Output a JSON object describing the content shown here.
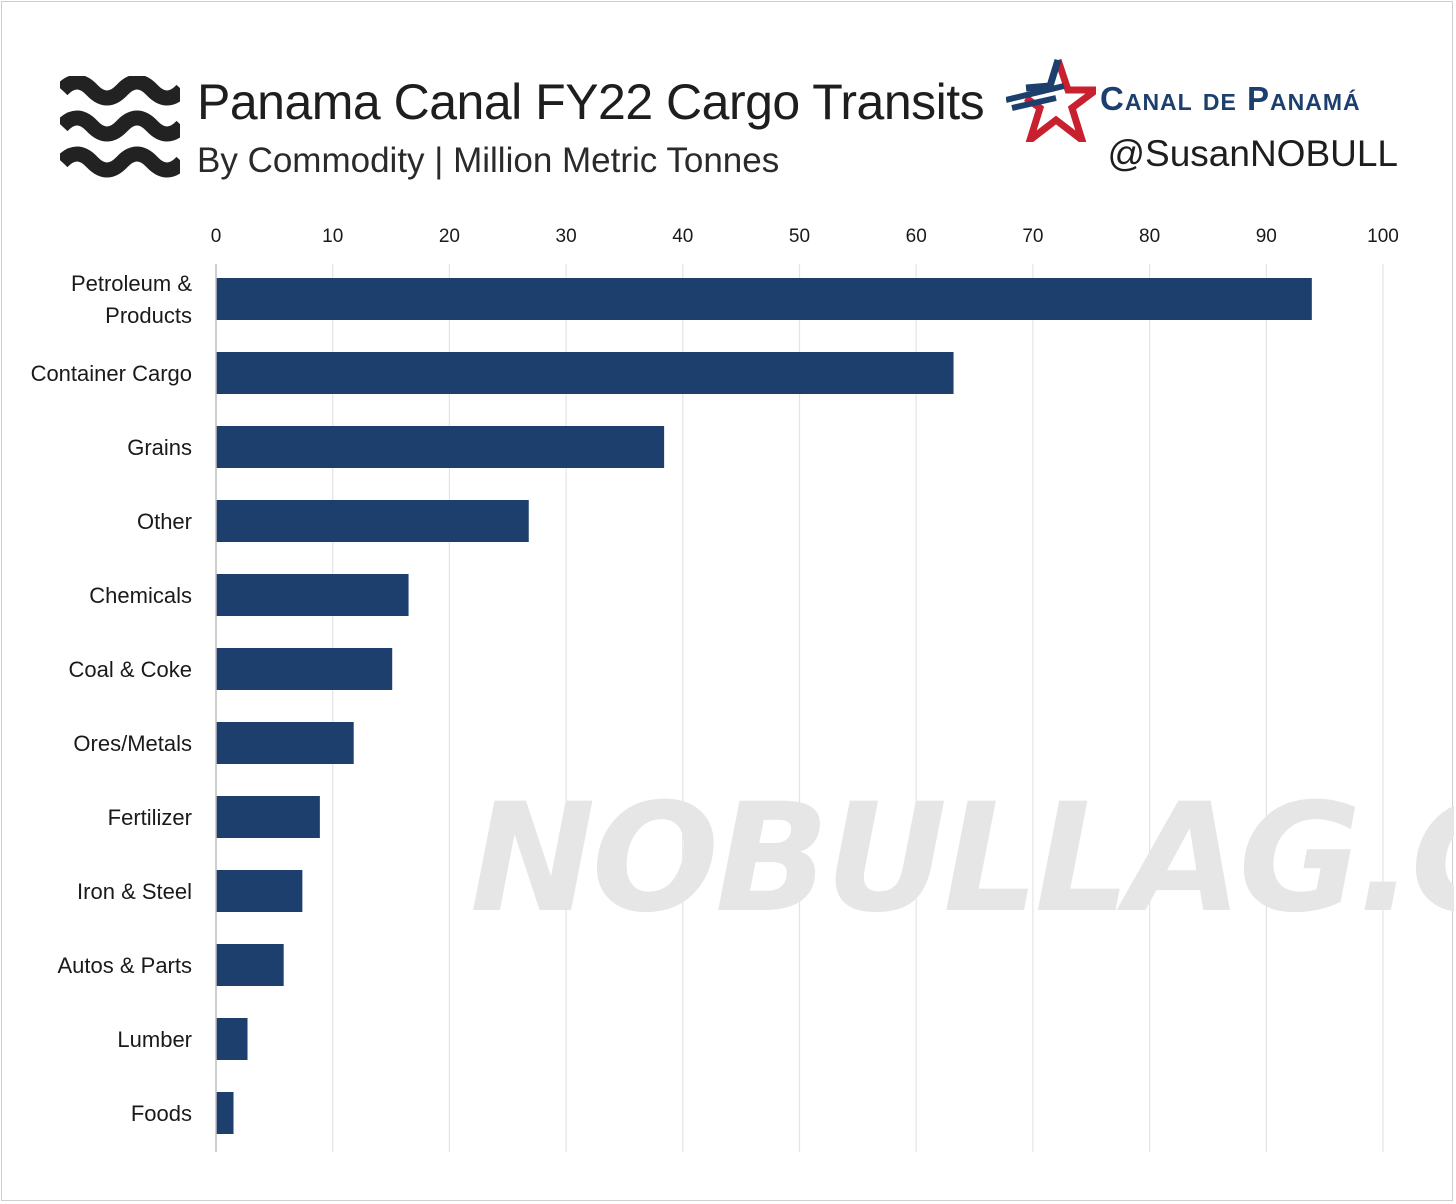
{
  "header": {
    "title": "Panama Canal FY22 Cargo Transits",
    "subtitle": "By Commodity | Million Metric Tonnes",
    "brand_name": "Canal de Panamá",
    "handle": "@SusanNOBULL",
    "watermark": "NOBULLAG.COM",
    "left_icon": "waves-icon",
    "brand_icon": "star-icon"
  },
  "colors": {
    "bar": "#1c3f6e",
    "brand_blue": "#1c3f6e",
    "brand_red": "#c8202f",
    "grid": "#e4e4e4"
  },
  "chart_data": {
    "type": "bar",
    "orientation": "horizontal",
    "title": "Panama Canal FY22 Cargo Transits",
    "subtitle": "By Commodity | Million Metric Tonnes",
    "xlim": [
      0,
      100
    ],
    "xticks": [
      0,
      10,
      20,
      30,
      40,
      50,
      60,
      70,
      80,
      90,
      100
    ],
    "x_axis_position": "top",
    "grid": "vertical",
    "categories": [
      [
        "Petroleum &",
        "Products"
      ],
      [
        "Container Cargo"
      ],
      [
        "Grains"
      ],
      [
        "Other"
      ],
      [
        "Chemicals"
      ],
      [
        "Coal & Coke"
      ],
      [
        "Ores/Metals"
      ],
      [
        "Fertilizer"
      ],
      [
        "Iron & Steel"
      ],
      [
        "Autos & Parts"
      ],
      [
        "Lumber"
      ],
      [
        "Foods"
      ]
    ],
    "values": [
      93.9,
      63.2,
      38.4,
      26.8,
      16.5,
      15.1,
      11.8,
      8.9,
      7.4,
      5.8,
      2.7,
      1.5
    ]
  }
}
